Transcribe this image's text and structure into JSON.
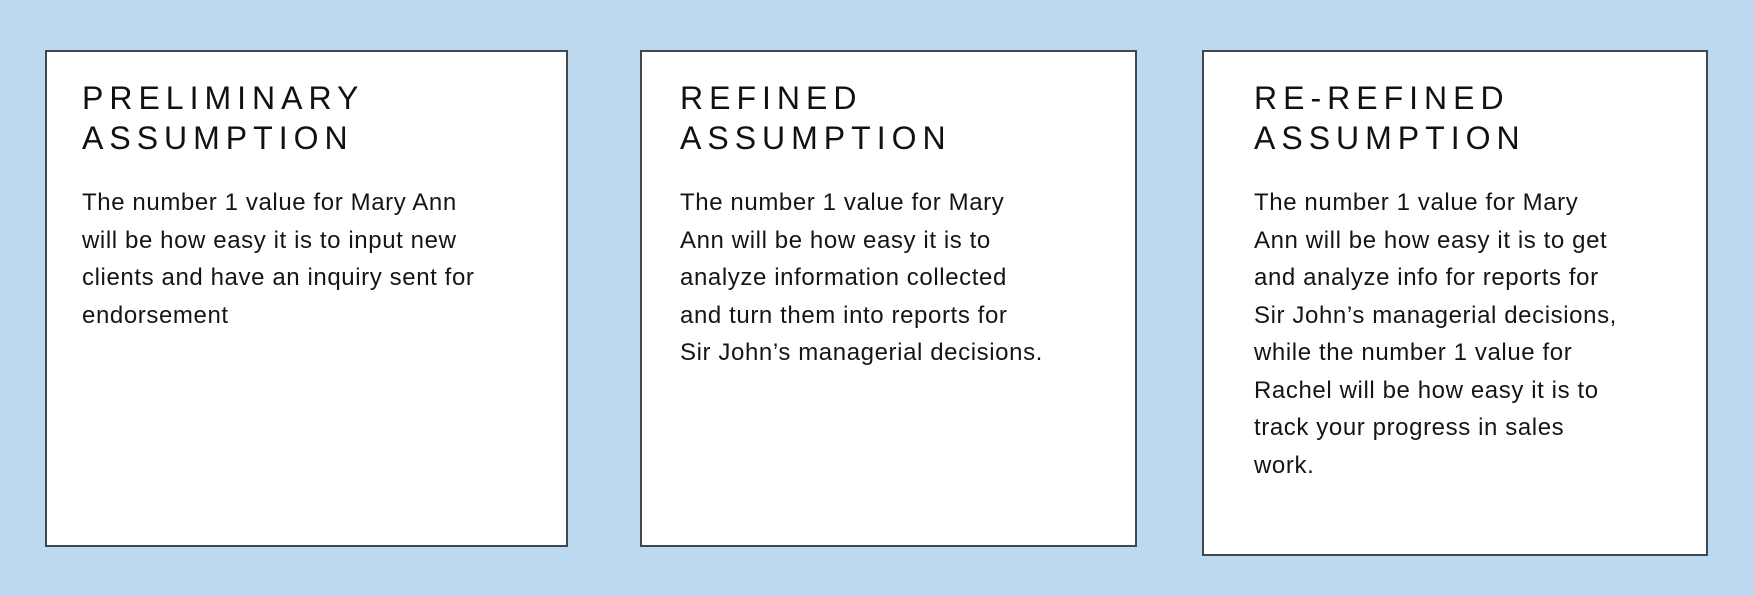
{
  "colors": {
    "background": "#bdd9f0",
    "card_background": "#ffffff",
    "card_border": "#3f4750",
    "text": "#111111"
  },
  "cards": [
    {
      "title_lines": [
        "PRELIMINARY",
        "ASSUMPTION"
      ],
      "body_lines": [
        "The number 1 value for Mary Ann",
        "will be how easy it is to input new",
        "clients and have an inquiry sent for",
        "endorsement"
      ]
    },
    {
      "title_lines": [
        "REFINED",
        "ASSUMPTION"
      ],
      "body_lines": [
        "The number 1 value for Mary",
        "Ann will be how easy it is to",
        "analyze information collected",
        "and turn them into reports for",
        "Sir John’s managerial decisions."
      ]
    },
    {
      "title_lines": [
        "RE-REFINED",
        "ASSUMPTION"
      ],
      "body_lines": [
        "The number 1 value for Mary",
        "Ann will be how easy it is to get",
        "and analyze info for reports for",
        "Sir John’s managerial decisions,",
        "while the number 1 value for",
        "Rachel will be how easy it is to",
        "track your progress in sales",
        "work."
      ]
    }
  ]
}
